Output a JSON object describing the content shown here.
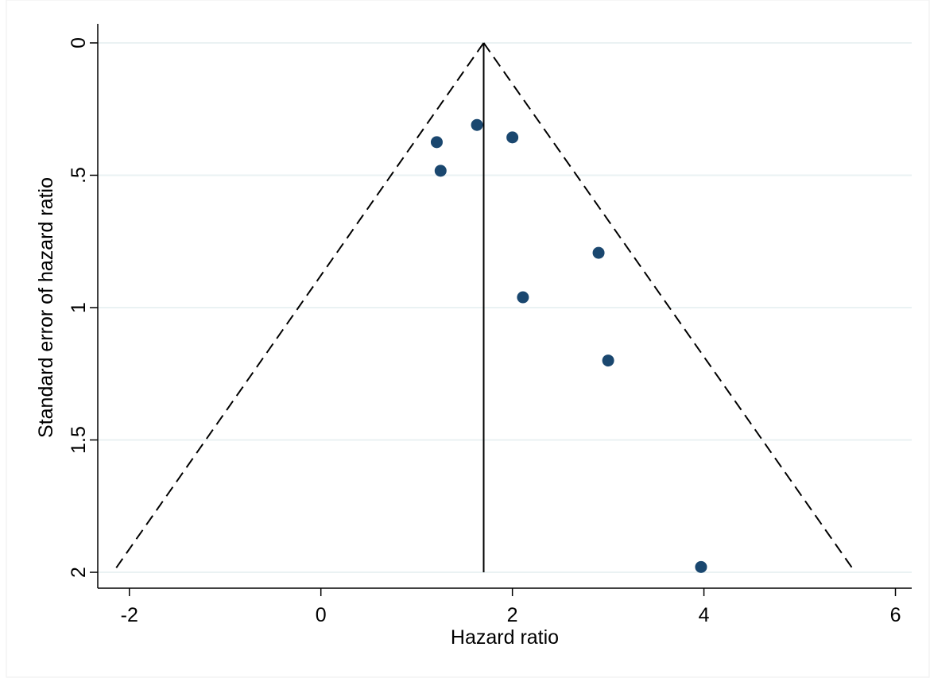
{
  "chart_data": {
    "type": "scatter",
    "x_label": "Hazard ratio",
    "y_label": "Standard error of hazard ratio",
    "x": [
      1.63,
      1.21,
      2.0,
      1.25,
      2.9,
      2.11,
      3.0,
      3.97
    ],
    "series": [
      {
        "color": "#1a476f",
        "values": [
          0.31,
          0.375,
          0.357,
          0.483,
          0.793,
          0.961,
          1.2,
          1.98
        ]
      }
    ],
    "pooled_estimate": 1.7,
    "funnel": {
      "se": [
        0,
        2
      ],
      "lower": [
        1.7,
        -2.17
      ],
      "upper": [
        1.7,
        5.58
      ]
    },
    "xlim": [
      -2.33,
      6.17
    ],
    "ylim": [
      2.06,
      -0.072
    ],
    "y_reversed": true,
    "xticks": [
      -2,
      0,
      2,
      4,
      6
    ],
    "yticks": [
      0,
      {
        "value": 0.5,
        "label": ".5"
      },
      1,
      {
        "value": 1.5,
        "label": "1.5"
      },
      2
    ],
    "grid": true
  }
}
